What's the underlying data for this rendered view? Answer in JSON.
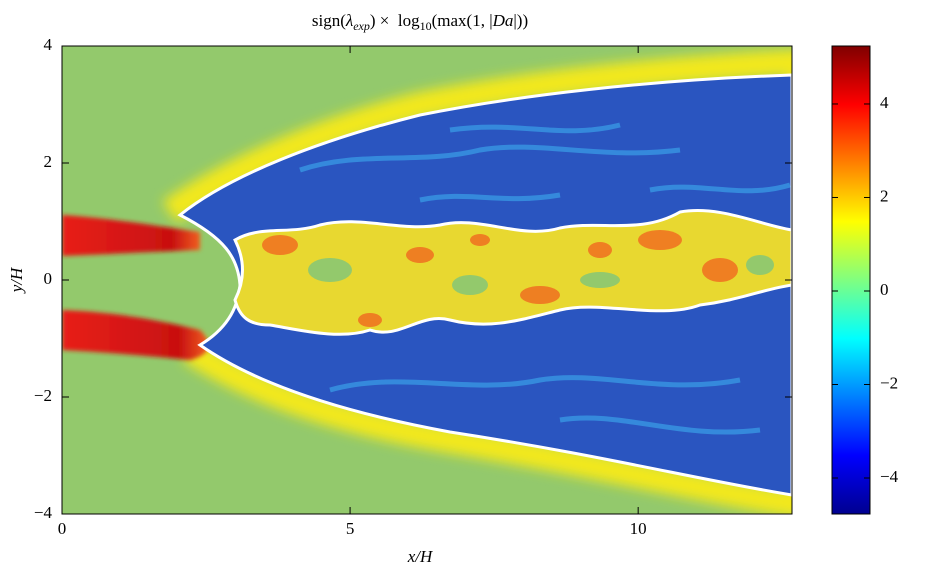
{
  "chart_data": {
    "type": "heatmap",
    "title_parts": [
      "sign(",
      "λ",
      "exp",
      ") ×  log",
      "10",
      "(max(1, |",
      "Da",
      "|))"
    ],
    "xlabel": "x/H",
    "ylabel": "y/H",
    "xlim": [
      0,
      12.67
    ],
    "ylim": [
      -4,
      4
    ],
    "xticks": [
      0,
      5,
      10
    ],
    "yticks": [
      {
        "value": -4,
        "label": "−4"
      },
      {
        "value": -2,
        "label": "−2"
      },
      0,
      2,
      4
    ],
    "clim": [
      -4.77,
      5.24
    ],
    "cticks": [
      {
        "value": -4,
        "label": "−4"
      },
      {
        "value": -2,
        "label": "−2"
      },
      0,
      2,
      4
    ],
    "colormap": [
      "#00008f",
      "#0000ff",
      "#0080ff",
      "#00ffff",
      "#80ff80",
      "#ffff00",
      "#ff8000",
      "#ff0000",
      "#800000"
    ]
  }
}
